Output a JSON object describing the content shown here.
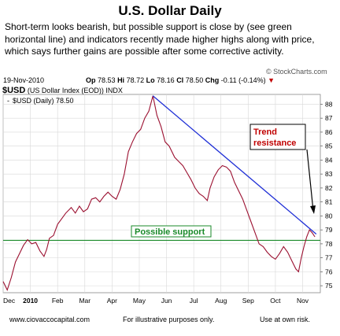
{
  "title": "U.S. Dollar Daily",
  "description": "Short-term looks bearish, but possible support is close by (see green horizontal line) and indicators recently made higher highs along with price, which says further gains are possible after some corrective activity.",
  "header": {
    "date": "19-Nov-2010",
    "ohlc": {
      "op_label": "Op",
      "op": "78.53",
      "hi_label": "Hi",
      "hi": "78.72",
      "lo_label": "Lo",
      "lo": "78.16",
      "cl_label": "Cl",
      "cl": "78.50",
      "chg_label": "Chg",
      "chg": "-0.11 (-0.14%)",
      "chg_arrow": "▼"
    },
    "logo": "© StockCharts.com",
    "symbol": "$USD",
    "symbol_desc": "(US Dollar Index (EOD))",
    "exchange": "INDX"
  },
  "legend": {
    "marker": "-",
    "label": "$USD (Daily) 78.50"
  },
  "footer": {
    "site": "www.ciovaccocapital.com",
    "note": "For illustrative purposes only.",
    "risk": "Use at own risk."
  },
  "colors": {
    "price": "#9b1030",
    "trend": "#1f2fd6",
    "support": "#1a8a2a",
    "annotation": "#c00000",
    "grid": "#d8d8d8"
  },
  "chart_data": {
    "type": "line",
    "x_labels": [
      "Dec",
      "2010",
      "Feb",
      "Mar",
      "Apr",
      "May",
      "Jun",
      "Jul",
      "Aug",
      "Sep",
      "Oct",
      "Nov"
    ],
    "y_ticks": [
      75,
      76,
      77,
      78,
      79,
      80,
      81,
      82,
      83,
      84,
      85,
      86,
      87,
      88
    ],
    "ylim": [
      74.5,
      88.7
    ],
    "y_axis_side": "right",
    "grid": true,
    "price_series": {
      "name": "$USD (Daily)",
      "points": [
        [
          0,
          75.3
        ],
        [
          0.3,
          74.7
        ],
        [
          0.6,
          75.6
        ],
        [
          0.9,
          76.7
        ],
        [
          1.2,
          77.3
        ],
        [
          1.5,
          77.9
        ],
        [
          1.8,
          78.3
        ],
        [
          2.1,
          78.0
        ],
        [
          2.4,
          78.1
        ],
        [
          2.7,
          77.5
        ],
        [
          3.0,
          77.1
        ],
        [
          3.2,
          77.6
        ],
        [
          3.4,
          78.4
        ],
        [
          3.7,
          78.6
        ],
        [
          4.0,
          79.4
        ],
        [
          4.3,
          79.8
        ],
        [
          4.6,
          80.2
        ],
        [
          5.0,
          80.6
        ],
        [
          5.3,
          80.2
        ],
        [
          5.6,
          80.7
        ],
        [
          5.9,
          80.3
        ],
        [
          6.2,
          80.5
        ],
        [
          6.5,
          81.2
        ],
        [
          6.8,
          81.3
        ],
        [
          7.1,
          81.0
        ],
        [
          7.4,
          81.4
        ],
        [
          7.7,
          81.7
        ],
        [
          8.0,
          81.4
        ],
        [
          8.3,
          81.2
        ],
        [
          8.6,
          81.9
        ],
        [
          8.9,
          83.0
        ],
        [
          9.2,
          84.6
        ],
        [
          9.5,
          85.3
        ],
        [
          9.8,
          85.9
        ],
        [
          10.1,
          86.2
        ],
        [
          10.4,
          87.0
        ],
        [
          10.7,
          87.5
        ],
        [
          11.0,
          88.6
        ],
        [
          11.3,
          87.2
        ],
        [
          11.6,
          86.4
        ],
        [
          11.9,
          85.3
        ],
        [
          12.2,
          85.0
        ],
        [
          12.6,
          84.2
        ],
        [
          12.9,
          83.9
        ],
        [
          13.2,
          83.6
        ],
        [
          13.5,
          83.1
        ],
        [
          13.8,
          82.6
        ],
        [
          14.1,
          82.0
        ],
        [
          14.4,
          81.6
        ],
        [
          14.7,
          81.4
        ],
        [
          15.0,
          81.1
        ],
        [
          15.2,
          82.0
        ],
        [
          15.5,
          82.8
        ],
        [
          15.8,
          83.3
        ],
        [
          16.1,
          83.6
        ],
        [
          16.4,
          83.5
        ],
        [
          16.7,
          83.2
        ],
        [
          17.0,
          82.4
        ],
        [
          17.3,
          81.8
        ],
        [
          17.6,
          81.2
        ],
        [
          17.9,
          80.4
        ],
        [
          18.2,
          79.6
        ],
        [
          18.5,
          78.8
        ],
        [
          18.8,
          78.0
        ],
        [
          19.1,
          77.8
        ],
        [
          19.4,
          77.4
        ],
        [
          19.7,
          77.1
        ],
        [
          20.0,
          76.9
        ],
        [
          20.3,
          77.3
        ],
        [
          20.6,
          77.8
        ],
        [
          20.9,
          77.4
        ],
        [
          21.2,
          76.8
        ],
        [
          21.5,
          76.2
        ],
        [
          21.7,
          76.0
        ],
        [
          21.9,
          77.0
        ],
        [
          22.1,
          77.8
        ],
        [
          22.3,
          78.5
        ],
        [
          22.5,
          79.0
        ],
        [
          22.7,
          78.8
        ],
        [
          22.9,
          78.5
        ]
      ]
    },
    "trend_line": {
      "name": "",
      "from": [
        11.0,
        88.6
      ],
      "to": [
        23.0,
        78.7
      ]
    },
    "support_line": {
      "name": "Possible support",
      "y": 78.25
    },
    "annotations": [
      {
        "text_line1": "Trend",
        "text_line2": "resistance"
      }
    ]
  }
}
